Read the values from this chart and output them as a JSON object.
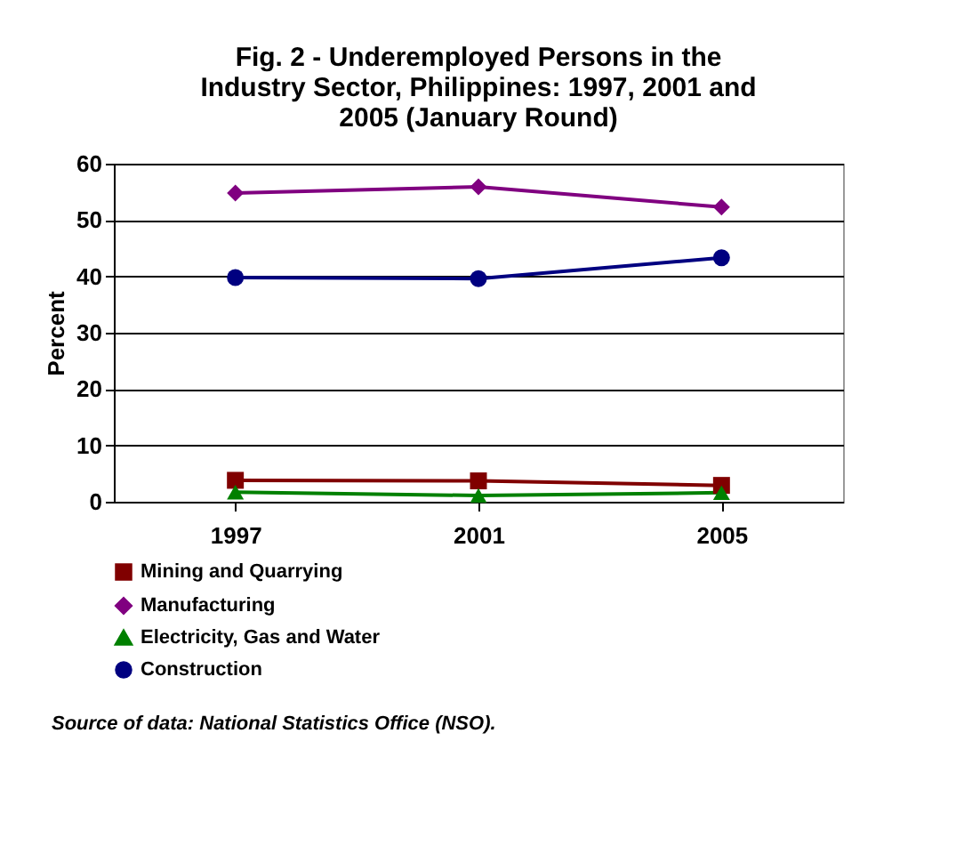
{
  "chart_data": {
    "type": "line",
    "title": "Fig. 2 - Underemployed Persons in the Industry Sector, Philippines: 1997, 2001 and 2005 (January Round)",
    "ylabel": "Percent",
    "categories": [
      "1997",
      "2001",
      "2005"
    ],
    "series": [
      {
        "name": "Mining and Quarrying",
        "color": "#800000",
        "marker": "square",
        "values": [
          3.8,
          3.7,
          2.9
        ]
      },
      {
        "name": "Manufacturing",
        "color": "#800080",
        "marker": "diamond",
        "values": [
          54.8,
          55.9,
          52.3
        ]
      },
      {
        "name": "Electricity, Gas and Water",
        "color": "#008000",
        "marker": "triangle",
        "values": [
          1.7,
          1.1,
          1.6
        ]
      },
      {
        "name": "Construction",
        "color": "#000080",
        "marker": "circle",
        "values": [
          39.8,
          39.6,
          43.3
        ]
      }
    ],
    "ylim": [
      0,
      60
    ],
    "yticks": [
      0,
      10,
      20,
      30,
      40,
      50,
      60
    ],
    "grid": "y",
    "legend": "bottom",
    "annotations": [
      "Source of data:  National Statistics Office (NSO)."
    ]
  }
}
